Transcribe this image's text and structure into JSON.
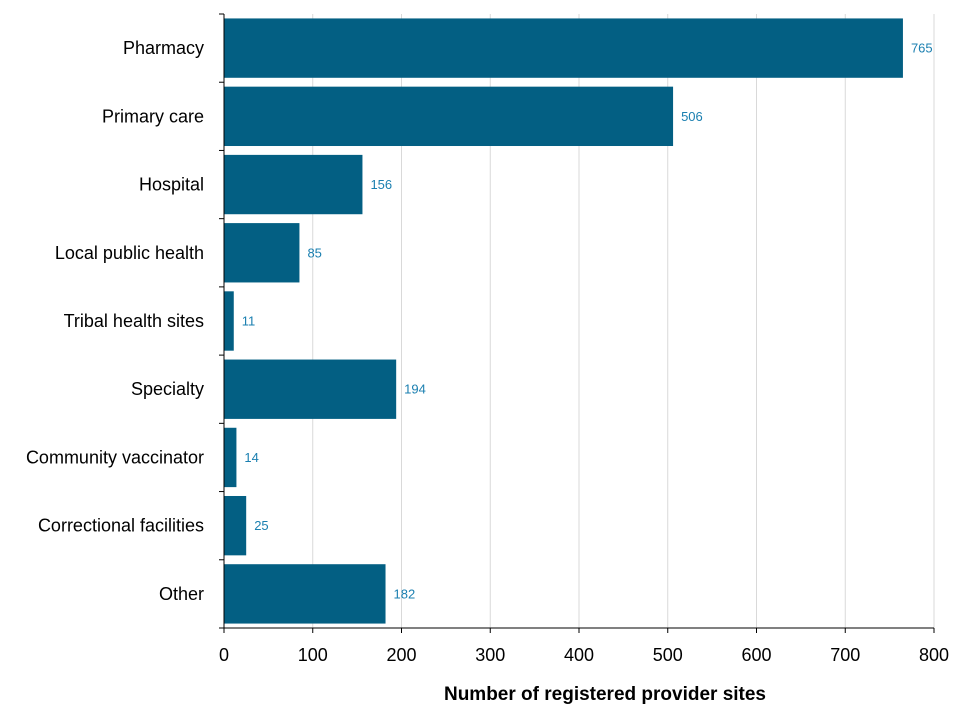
{
  "chart_data": {
    "type": "bar",
    "orientation": "horizontal",
    "title": "",
    "xlabel": "Number of registered provider sites",
    "ylabel": "",
    "categories": [
      "Pharmacy",
      "Primary care",
      "Hospital",
      "Local public health",
      "Tribal health sites",
      "Specialty",
      "Community vaccinator",
      "Correctional facilities",
      "Other"
    ],
    "values": [
      765,
      506,
      156,
      85,
      11,
      194,
      14,
      25,
      182
    ],
    "xlim": [
      0,
      800
    ],
    "xticks": [
      0,
      100,
      200,
      300,
      400,
      500,
      600,
      700,
      800
    ],
    "grid": "vertical",
    "legend": "none",
    "data_labels": true,
    "colors": {
      "bar": "#035F83",
      "data_label": "#1A7FB0",
      "grid": "#D9D9D9",
      "axis": "#000000"
    }
  }
}
